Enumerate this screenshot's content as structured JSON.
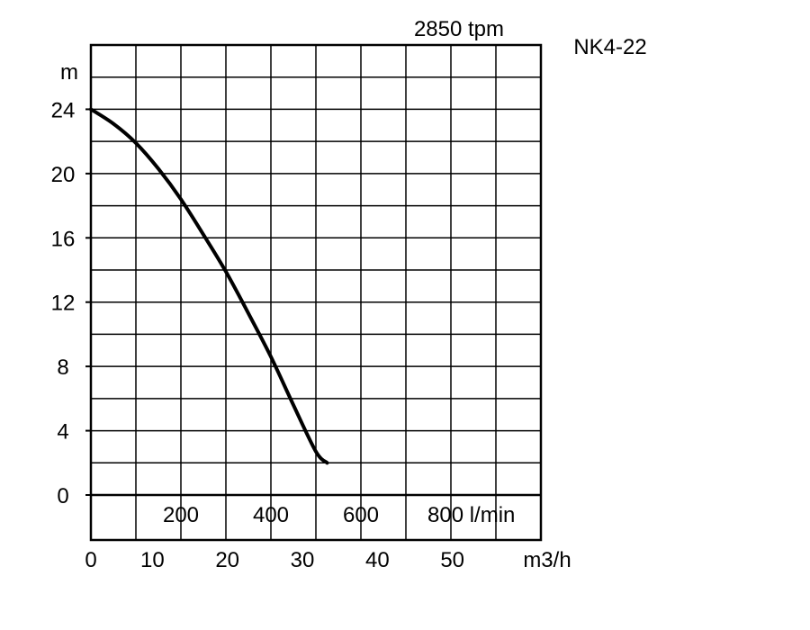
{
  "chart_data": {
    "type": "line",
    "title": "NK4-22",
    "subtitle": "2850 tpm",
    "ylabel": "m",
    "ylim": [
      0,
      28
    ],
    "y_ticks": [
      "0",
      "4",
      "8",
      "12",
      "16",
      "20",
      "24"
    ],
    "x_lmin_ticks": [
      "200",
      "400",
      "600",
      "800 l/min"
    ],
    "x_m3h_ticks": [
      "0",
      "10",
      "20",
      "30",
      "40",
      "50",
      "m3/h"
    ],
    "x_m3h_range": [
      0,
      60
    ],
    "grid": true,
    "series": [
      {
        "x": [
          0,
          3,
          6,
          9,
          12,
          15,
          18,
          21,
          24,
          27,
          30,
          31.5
        ],
        "y": [
          24,
          23.1,
          21.9,
          20.3,
          18.4,
          16.2,
          13.9,
          11.3,
          8.6,
          5.6,
          2.7,
          2
        ]
      }
    ]
  }
}
